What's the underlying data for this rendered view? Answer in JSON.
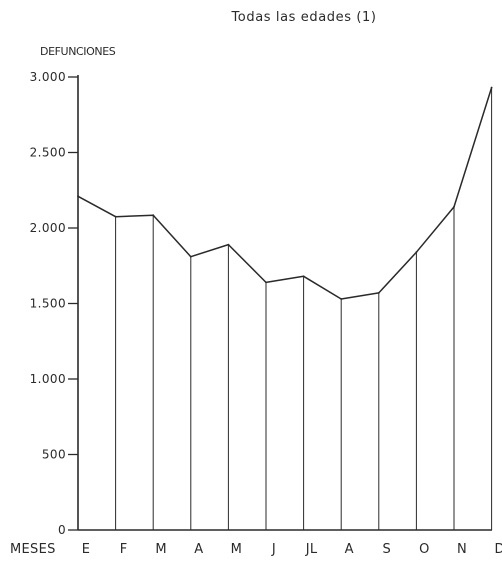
{
  "chart_data": {
    "type": "line",
    "title": "Todas las edades (1)",
    "ylabel": "DEFUNCIONES",
    "xlabel": "MESES",
    "categories": [
      "E",
      "F",
      "M",
      "A",
      "M",
      "J",
      "JL",
      "A",
      "S",
      "O",
      "N",
      "D"
    ],
    "values": [
      2210,
      2075,
      2085,
      1810,
      1890,
      1640,
      1680,
      1530,
      1570,
      1840,
      2140,
      2930
    ],
    "ylim": [
      0,
      3000
    ],
    "yticks": [
      0,
      500,
      1000,
      1500,
      2000,
      2500,
      3000
    ],
    "ytick_labels": [
      "0",
      "500",
      "1.000",
      "1.500",
      "2.000",
      "2.500",
      "3.000"
    ],
    "grid": false,
    "vertical_drop_lines": true
  },
  "colors": {
    "ink": "#2a2a2a",
    "background": "#ffffff"
  }
}
